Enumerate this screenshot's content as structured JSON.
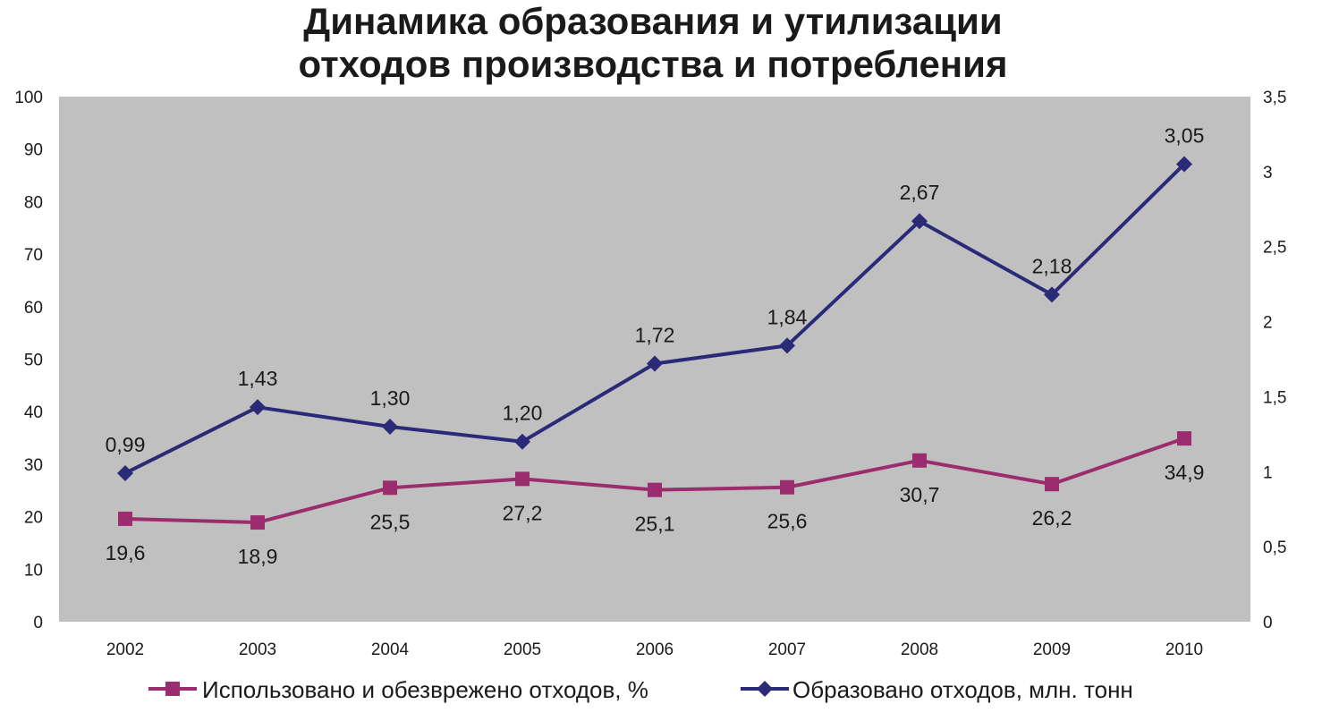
{
  "chart_data": {
    "type": "line",
    "title": [
      "Динамика образования и утилизации",
      "отходов производства и потребления"
    ],
    "categories": [
      "2002",
      "2003",
      "2004",
      "2005",
      "2006",
      "2007",
      "2008",
      "2009",
      "2010"
    ],
    "y_left": {
      "ylim": [
        0,
        100
      ],
      "ticks": [
        "0",
        "10",
        "20",
        "30",
        "40",
        "50",
        "60",
        "70",
        "80",
        "90",
        "100"
      ]
    },
    "y_right": {
      "ylim": [
        0,
        3.5
      ],
      "ticks": [
        "0",
        "0,5",
        "1",
        "1,5",
        "2",
        "2,5",
        "3",
        "3,5"
      ]
    },
    "series": [
      {
        "name": "Использовано и обезврежено отходов, %",
        "axis": "left",
        "marker": "square",
        "color": "#9b2d6e",
        "values": [
          19.6,
          18.9,
          25.5,
          27.2,
          25.1,
          25.6,
          30.7,
          26.2,
          34.9
        ],
        "labels": [
          "19,6",
          "18,9",
          "25,5",
          "27,2",
          "25,1",
          "25,6",
          "30,7",
          "26,2",
          "34,9"
        ]
      },
      {
        "name": "Образовано отходов, млн. тонн",
        "axis": "right",
        "marker": "diamond",
        "color": "#2b2a78",
        "values": [
          0.99,
          1.43,
          1.3,
          1.2,
          1.72,
          1.84,
          2.67,
          2.18,
          3.05
        ],
        "labels": [
          "0,99",
          "1,43",
          "1,30",
          "1,20",
          "1,72",
          "1,84",
          "2,67",
          "2,18",
          "3,05"
        ]
      }
    ],
    "plot_background": "#c0c0c0",
    "grid": false,
    "legend": "bottom"
  }
}
